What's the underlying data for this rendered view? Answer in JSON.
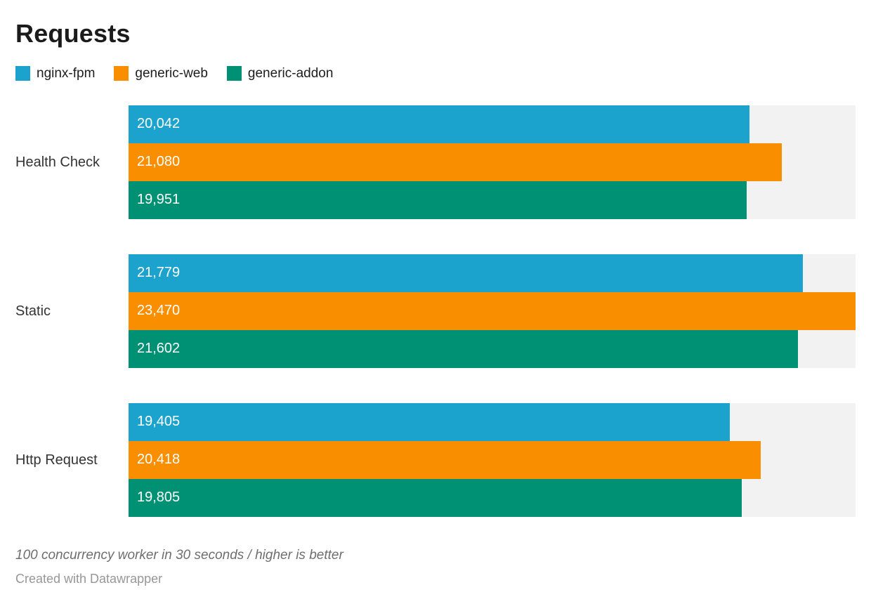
{
  "title": "Requests",
  "legend": [
    {
      "label": "nginx-fpm",
      "color": "#1ba3cd"
    },
    {
      "label": "generic-web",
      "color": "#f98f00"
    },
    {
      "label": "generic-addon",
      "color": "#009174"
    }
  ],
  "chart_data": {
    "type": "bar",
    "orientation": "horizontal",
    "title": "Requests",
    "categories": [
      "Health Check",
      "Static",
      "Http Request"
    ],
    "series": [
      {
        "name": "nginx-fpm",
        "color": "#1ba3cd",
        "values": [
          20042,
          21779,
          19405
        ]
      },
      {
        "name": "generic-web",
        "color": "#f98f00",
        "values": [
          21080,
          23470,
          20418
        ]
      },
      {
        "name": "generic-addon",
        "color": "#009174",
        "values": [
          19951,
          21602,
          19805
        ]
      }
    ],
    "xlim": [
      0,
      23470
    ],
    "grid": false,
    "value_labels": "inside-start",
    "track_color": "#f2f2f2",
    "legend_position": "top"
  },
  "footer": {
    "note": "100 concurrency worker in 30 seconds / higher is better",
    "attribution": "Created with Datawrapper"
  }
}
